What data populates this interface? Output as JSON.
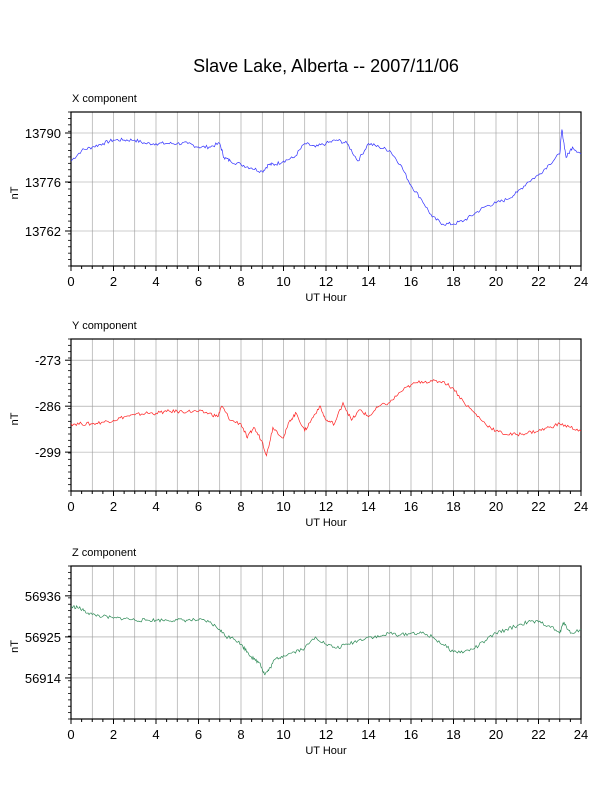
{
  "title": "Slave Lake, Alberta -- 2007/11/06",
  "chart_data": [
    {
      "type": "line",
      "title": "X component",
      "xlabel": "UT Hour",
      "ylabel": "nT",
      "color": "#3333ff",
      "xlim": [
        0,
        24
      ],
      "ylim": [
        13752,
        13796
      ],
      "x_ticks": [
        0,
        2,
        4,
        6,
        8,
        10,
        12,
        14,
        16,
        18,
        20,
        22,
        24
      ],
      "y_ticks": [
        13762,
        13776,
        13790
      ],
      "grid": true,
      "x": [
        0,
        0.5,
        1,
        1.5,
        2,
        2.5,
        3,
        3.5,
        4,
        4.5,
        5,
        5.5,
        6,
        6.5,
        7,
        7.2,
        7.5,
        8,
        8.5,
        9,
        9.3,
        9.6,
        10,
        10.5,
        11,
        11.5,
        12,
        12.5,
        13,
        13.5,
        14,
        14.5,
        15,
        15.5,
        16,
        16.5,
        17,
        17.5,
        18,
        18.5,
        19,
        19.5,
        20,
        20.5,
        21,
        21.5,
        22,
        22.5,
        23,
        23.1,
        23.3,
        23.6,
        24
      ],
      "values": [
        13782,
        13785,
        13786,
        13787,
        13788,
        13788,
        13788,
        13787,
        13787,
        13787,
        13787,
        13787,
        13786,
        13786,
        13787,
        13783,
        13782,
        13781,
        13780,
        13779,
        13781,
        13781,
        13782,
        13783,
        13787,
        13786,
        13787,
        13788,
        13787,
        13782,
        13787,
        13786,
        13785,
        13781,
        13775,
        13771,
        13766,
        13764,
        13764,
        13765,
        13767,
        13769,
        13770,
        13771,
        13773,
        13776,
        13778,
        13781,
        13784,
        13791,
        13783,
        13786,
        13784
      ]
    },
    {
      "type": "line",
      "title": "Y component",
      "xlabel": "UT Hour",
      "ylabel": "nT",
      "color": "#ff2222",
      "xlim": [
        0,
        24
      ],
      "ylim": [
        -310,
        -267
      ],
      "x_ticks": [
        0,
        2,
        4,
        6,
        8,
        10,
        12,
        14,
        16,
        18,
        20,
        22,
        24
      ],
      "y_ticks": [
        -299,
        -286,
        -273
      ],
      "grid": true,
      "x": [
        0,
        0.5,
        1,
        1.5,
        2,
        2.5,
        3,
        3.5,
        4,
        4.5,
        5,
        5.5,
        6,
        6.5,
        6.9,
        7.1,
        7.5,
        8,
        8.3,
        8.6,
        9,
        9.2,
        9.5,
        10,
        10.3,
        10.6,
        11,
        11.3,
        11.7,
        12,
        12.4,
        12.8,
        13.2,
        13.6,
        14,
        14.5,
        15,
        15.5,
        16,
        16.5,
        17,
        17.5,
        18,
        18.5,
        19,
        19.5,
        20,
        20.5,
        21,
        21.5,
        22,
        22.5,
        23,
        23.5,
        24
      ],
      "values": [
        -291,
        -291,
        -291,
        -290.5,
        -290,
        -289,
        -288.5,
        -288,
        -288,
        -287.5,
        -287.5,
        -287.5,
        -287.5,
        -288,
        -289,
        -286,
        -290,
        -291,
        -295,
        -292,
        -296,
        -300,
        -292,
        -295,
        -290,
        -288,
        -293,
        -290,
        -286,
        -290,
        -291,
        -285,
        -290,
        -287,
        -289,
        -286,
        -285,
        -282,
        -280,
        -279,
        -279,
        -279,
        -281,
        -285,
        -288,
        -291,
        -293,
        -294,
        -294,
        -293.5,
        -293,
        -292,
        -291,
        -292,
        -293
      ]
    },
    {
      "type": "line",
      "title": "Z component",
      "xlabel": "UT Hour",
      "ylabel": "nT",
      "color": "#2e8b57",
      "xlim": [
        0,
        24
      ],
      "ylim": [
        56903,
        56944
      ],
      "x_ticks": [
        0,
        2,
        4,
        6,
        8,
        10,
        12,
        14,
        16,
        18,
        20,
        22,
        24
      ],
      "y_ticks": [
        56914,
        56925,
        56936
      ],
      "grid": true,
      "x": [
        0,
        0.3,
        0.6,
        1,
        1.5,
        2,
        2.5,
        3,
        3.5,
        4,
        4.5,
        5,
        5.5,
        6,
        6.5,
        7,
        7.3,
        7.6,
        8,
        8.3,
        8.6,
        8.9,
        9.1,
        9.3,
        9.6,
        10,
        10.5,
        11,
        11.5,
        12,
        12.5,
        13,
        13.5,
        14,
        14.5,
        15,
        15.5,
        16,
        16.5,
        17,
        17.5,
        18,
        18.5,
        19,
        19.5,
        20,
        20.5,
        21,
        21.5,
        22,
        22.5,
        23,
        23.2,
        23.5,
        24
      ],
      "values": [
        56933,
        56933,
        56932,
        56931,
        56930.5,
        56930,
        56930,
        56929.5,
        56929.5,
        56929.5,
        56929.5,
        56929.5,
        56929.5,
        56929.5,
        56929,
        56927,
        56925,
        56925,
        56923,
        56921,
        56919,
        56918,
        56915,
        56916,
        56919,
        56920,
        56921,
        56922,
        56925,
        56923,
        56922,
        56923,
        56924,
        56925,
        56925,
        56926,
        56925.5,
        56926,
        56926,
        56925,
        56923,
        56921,
        56921,
        56922,
        56924,
        56926,
        56927,
        56928,
        56929,
        56929,
        56928,
        56926,
        56929,
        56926,
        56927
      ]
    }
  ]
}
